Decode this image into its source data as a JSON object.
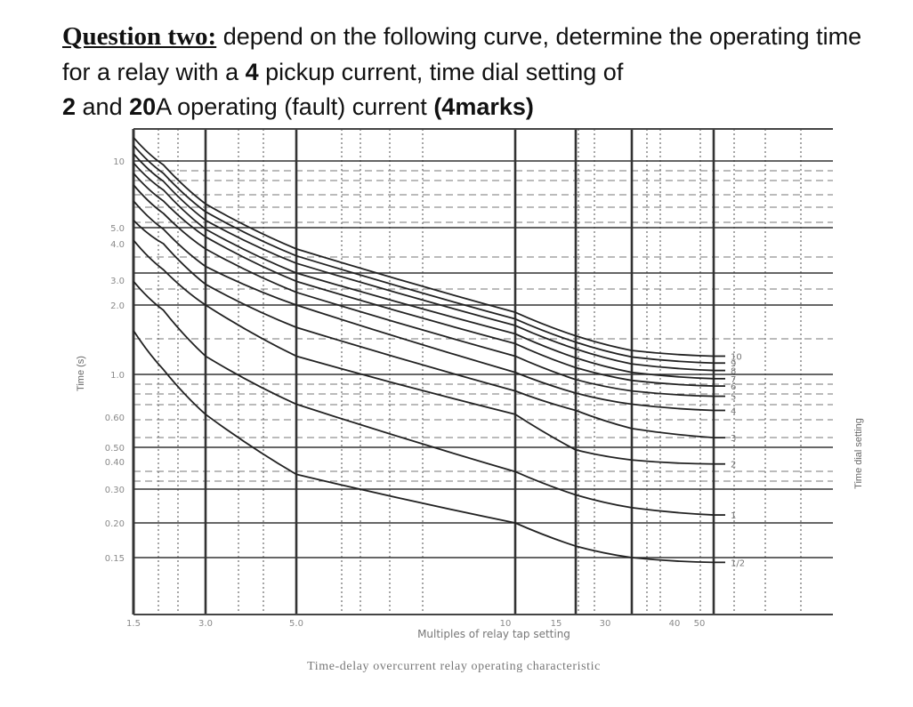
{
  "question": {
    "label": "Question two:",
    "text_1": " depend on the following curve, determine the operating time for a relay with a ",
    "pickup": "4",
    "text_2": " pickup current, time dial setting of ",
    "tds": "2",
    "text_3": " and ",
    "fault": "20",
    "text_4": "A operating (fault) current ",
    "marks": "(4marks)"
  },
  "chart_data": {
    "type": "line",
    "title": "Time-delay overcurrent relay operating characteristic",
    "xlabel": "Multiples of relay tap setting",
    "ylabel": "Time (s)",
    "right_label": "Time dial setting",
    "x_scale": "log",
    "y_scale": "log",
    "xlim": [
      1.5,
      50
    ],
    "ylim": [
      0.1,
      14
    ],
    "x_ticks": [
      "1.5",
      "3.0",
      "5.0",
      "10",
      "15",
      "30",
      "40",
      "50"
    ],
    "y_ticks": [
      "10",
      "5.0",
      "4.0",
      "3.0",
      "2.0",
      "1.0",
      "0.60",
      "0.50",
      "0.40",
      "0.30",
      "0.20",
      "0.15"
    ],
    "grid": true,
    "x": [
      1.5,
      2,
      3,
      5,
      10,
      15,
      30,
      50
    ],
    "series": [
      {
        "name": "1/2",
        "values": [
          1.55,
          1.05,
          0.62,
          0.35,
          0.2,
          0.165,
          0.15,
          0.145
        ]
      },
      {
        "name": "1",
        "values": [
          2.7,
          1.9,
          1.2,
          0.7,
          0.36,
          0.28,
          0.24,
          0.22
        ]
      },
      {
        "name": "2",
        "values": [
          4.2,
          3.1,
          2.0,
          1.2,
          0.62,
          0.48,
          0.41,
          0.39
        ]
      },
      {
        "name": "3",
        "values": [
          5.4,
          4.0,
          2.6,
          1.6,
          0.82,
          0.65,
          0.56,
          0.53
        ]
      },
      {
        "name": "4",
        "values": [
          6.6,
          4.9,
          3.2,
          2.0,
          1.02,
          0.8,
          0.7,
          0.65
        ]
      },
      {
        "name": "5",
        "values": [
          7.8,
          5.8,
          3.8,
          2.35,
          1.2,
          0.94,
          0.82,
          0.77
        ]
      },
      {
        "name": "6",
        "values": [
          8.8,
          6.6,
          4.4,
          2.7,
          1.36,
          1.07,
          0.93,
          0.87
        ]
      },
      {
        "name": "7",
        "values": [
          9.8,
          7.4,
          4.9,
          3.0,
          1.5,
          1.18,
          1.02,
          0.95
        ]
      },
      {
        "name": "8",
        "values": [
          10.8,
          8.1,
          5.4,
          3.3,
          1.63,
          1.29,
          1.11,
          1.04
        ]
      },
      {
        "name": "9",
        "values": [
          11.8,
          8.8,
          5.9,
          3.55,
          1.74,
          1.38,
          1.19,
          1.12
        ]
      },
      {
        "name": "10",
        "values": [
          12.8,
          9.6,
          6.4,
          3.8,
          1.86,
          1.47,
          1.27,
          1.2
        ]
      }
    ]
  }
}
